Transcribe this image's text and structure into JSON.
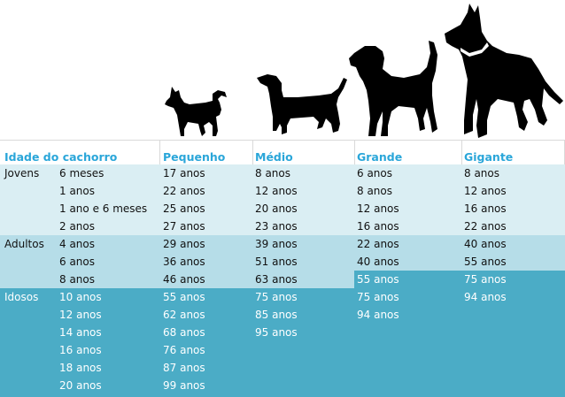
{
  "header": {
    "col_age": "Idade do cachorro",
    "col_small": "Pequenho",
    "col_medium": "Médio",
    "col_large": "Grande",
    "col_giant": "Gigante"
  },
  "icons": [
    "chihuahua-silhouette-icon",
    "dachshund-silhouette-icon",
    "beagle-silhouette-icon",
    "great-dane-silhouette-icon"
  ],
  "colors": {
    "header_text": "#2aa6d9",
    "jovens_bg": "#daeef3",
    "adultos_bg": "#b6dde8",
    "idosos_bg": "#4bacc6"
  },
  "groups": {
    "jovens": "Jovens",
    "adultos": "Adultos",
    "idosos": "Idosos"
  },
  "rows": [
    {
      "age": "6 meses",
      "small": "17 anos",
      "medium": "8  anos",
      "large": "6  anos",
      "giant": "8  anos"
    },
    {
      "age": "1 anos",
      "small": "22  anos",
      "medium": "12  anos",
      "large": "8  anos",
      "giant": "12  anos"
    },
    {
      "age": "1 ano e 6 meses",
      "small": "25  anos",
      "medium": "20  anos",
      "large": "12  anos",
      "giant": "16  anos"
    },
    {
      "age": "2 anos",
      "small": "27  anos",
      "medium": "23  anos",
      "large": "16  anos",
      "giant": "22  anos"
    },
    {
      "age": "4 anos",
      "small": "29  anos",
      "medium": "39  anos",
      "large": "22  anos",
      "giant": "40  anos"
    },
    {
      "age": "6 anos",
      "small": "36  anos",
      "medium": "51  anos",
      "large": "40  anos",
      "giant": "55  anos"
    },
    {
      "age": "8 anos",
      "small": "46  anos",
      "medium": "63  anos",
      "large": "55  anos",
      "giant": "75 anos"
    },
    {
      "age": "10 anos",
      "small": "55  anos",
      "medium": "75  anos",
      "large": "75  anos",
      "giant": "94 anos"
    },
    {
      "age": "12 anos",
      "small": "62  anos",
      "medium": "85 anos",
      "large": "94  anos",
      "giant": ""
    },
    {
      "age": "14 anos",
      "small": "68  anos",
      "medium": "95  anos",
      "large": "",
      "giant": ""
    },
    {
      "age": "16 anos",
      "small": "76  anos",
      "medium": "",
      "large": "",
      "giant": ""
    },
    {
      "age": "18 anos",
      "small": "87  anos",
      "medium": "",
      "large": "",
      "giant": ""
    },
    {
      "age": "20 anos",
      "small": "99  anos",
      "medium": "",
      "large": "",
      "giant": ""
    }
  ]
}
